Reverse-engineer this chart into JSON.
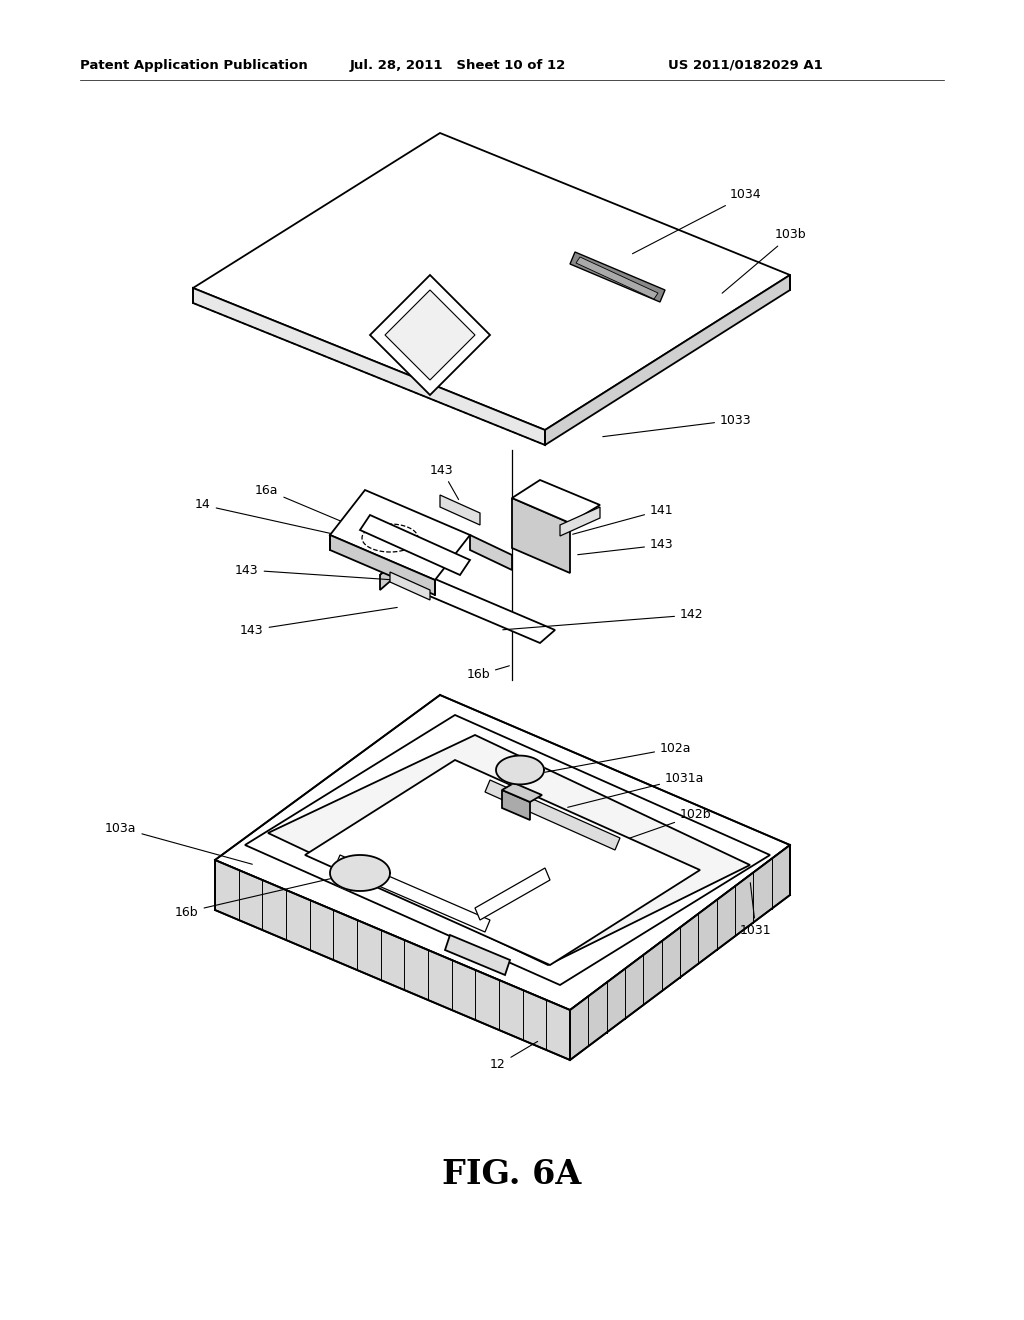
{
  "header_left": "Patent Application Publication",
  "header_mid": "Jul. 28, 2011   Sheet 10 of 12",
  "header_right": "US 2011/0182029 A1",
  "figure_label": "FIG. 6A",
  "bg_color": "#ffffff",
  "line_color": "#000000",
  "lw": 1.3
}
